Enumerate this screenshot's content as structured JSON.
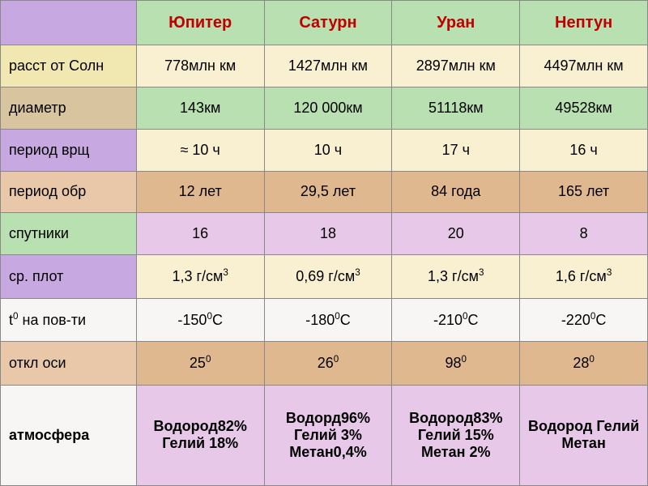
{
  "colors": {
    "header_label": "#c8a8e0",
    "header_planet": "#b8e0b0",
    "row1_label": "#f0e8b0",
    "row1_data": "#f8f0d0",
    "row2_label": "#d8c49f",
    "row2_data": "#b8e0b0",
    "row3_label": "#c8a8e0",
    "row3_data": "#f8f0d0",
    "row4_label": "#e8c8a8",
    "row4_data": "#e0b890",
    "row5_label": "#b8e0b0",
    "row5_data": "#e8c8e8",
    "row6_label": "#c8a8e0",
    "row6_data": "#f8f0d0",
    "row7_label": "#f8f6f4",
    "row7_data": "#f8f6f4",
    "row8_label": "#e8c8a8",
    "row8_data": "#e0b890",
    "row9_label": "#f8f6f4",
    "row9_data": "#e8c8e8",
    "header_text": "#c00000"
  },
  "headers": {
    "blank": "",
    "p1": "Юпитер",
    "p2": "Сатурн",
    "p3": "Уран",
    "p4": "Нептун"
  },
  "rows": [
    {
      "label": "расст от Солн",
      "c1": "778млн км",
      "c2": "1427млн км",
      "c3": "2897млн км",
      "c4": "4497млн км"
    },
    {
      "label": "диаметр",
      "c1": "143км",
      "c2": "120 000км",
      "c3": "51118км",
      "c4": "49528км"
    },
    {
      "label": "период врщ",
      "c1": "≈ 10 ч",
      "c2": "10 ч",
      "c3": "17 ч",
      "c4": "16 ч"
    },
    {
      "label": "период обр",
      "c1": "12 лет",
      "c2": "29,5 лет",
      "c3": "84 года",
      "c4": "165 лет"
    },
    {
      "label": "спутники",
      "c1": "16",
      "c2": "18",
      "c3": "20",
      "c4": "8"
    },
    {
      "label": "ср. плот",
      "c1": "1,3 г/см",
      "c2": "0,69 г/см",
      "c3": "1,3 г/см",
      "c4": "1,6 г/см",
      "sup": "3"
    },
    {
      "label_html": "t<sup>0</sup> на пов-ти",
      "c1": "-150",
      "c2": "-180",
      "c3": "-210",
      "c4": "-220",
      "suffix": "°С",
      "sup": "0",
      "suffix2": "С"
    },
    {
      "label": "откл оси",
      "c1": "25",
      "c2": "26",
      "c3": "98",
      "c4": "28",
      "sup": "0"
    },
    {
      "label": "атмосфера",
      "c1": "Водород82% Гелий 18%",
      "c2": "Водорд96% Гелий 3% Метан0,4%",
      "c3": "Водород83% Гелий 15% Метан 2%",
      "c4": "Водород Гелий Метан",
      "bold": true
    }
  ]
}
